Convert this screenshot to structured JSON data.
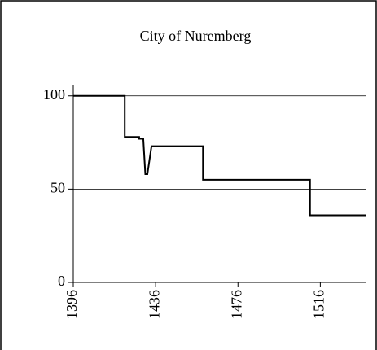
{
  "chart_data": {
    "type": "line",
    "title": "City of Nuremberg",
    "x": [
      1396,
      1421,
      1421,
      1428,
      1428,
      1430,
      1431,
      1432,
      1434,
      1459,
      1459,
      1511,
      1511,
      1538
    ],
    "series": [
      {
        "color": "#000000",
        "values": [
          100,
          100,
          78,
          78,
          77,
          77,
          58,
          58,
          73,
          73,
          55,
          55,
          36,
          36
        ]
      }
    ],
    "xlim": [
      1396,
      1538
    ],
    "xticks": [
      1396,
      1436,
      1476,
      1516
    ],
    "ylim": [
      0,
      106
    ],
    "yticks": [
      0,
      50,
      100
    ],
    "grid": true
  }
}
